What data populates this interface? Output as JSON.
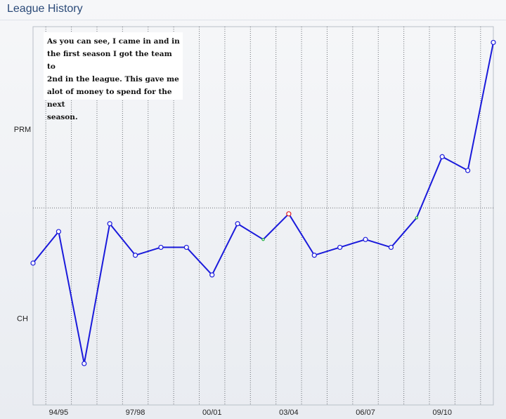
{
  "panel": {
    "title": "League History"
  },
  "chart_data": {
    "type": "line",
    "title": "",
    "xlabel": "",
    "ylabel": "",
    "y_axis_labels": [
      "PRM",
      "CH"
    ],
    "x_tick_labels": [
      "94/95",
      "97/98",
      "00/01",
      "03/04",
      "06/07",
      "09/10"
    ],
    "grid": "dotted vertical lines between seasons",
    "colors": {
      "line": "#1a1adb",
      "marker": "#1a1adb",
      "highlight_red": "#e02020",
      "highlight_green": "#20b040"
    },
    "series": [
      {
        "values": [
          9.6,
          10.4,
          7.05,
          10.6,
          9.8,
          10.0,
          10.0,
          9.3,
          10.6,
          10.2,
          10.85,
          9.8,
          10.0,
          10.2,
          10.0,
          10.75,
          12.3,
          11.95,
          15.2
        ],
        "highlights": [
          {
            "index": 9,
            "color": "green"
          },
          {
            "index": 10,
            "color": "red"
          },
          {
            "index": 15,
            "color": "green"
          }
        ]
      }
    ],
    "ylim": [
      6.0,
      15.6
    ],
    "y_ticks": {
      "PRM": 13.0,
      "CH": 8.2
    },
    "reference_line": 11.0
  },
  "annotation": {
    "lines": [
      "As you can see, I came in and in",
      "the first season I got the team to",
      "2nd in the league. This gave me",
      "alot of money to spend for the next",
      "season."
    ]
  }
}
